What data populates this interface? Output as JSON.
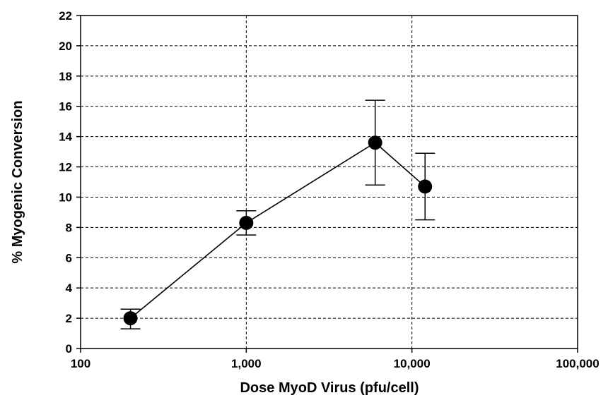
{
  "chart_data": {
    "type": "scatter",
    "title": "",
    "xlabel": "Dose MyoD Virus (pfu/cell)",
    "ylabel": "% Myogenic Conversion",
    "x_scale": "log",
    "xlim": [
      100,
      100000
    ],
    "ylim": [
      0,
      22
    ],
    "x_ticks": [
      100,
      1000,
      10000,
      100000
    ],
    "x_tick_labels": [
      "100",
      "1,000",
      "10,000",
      "100,000"
    ],
    "y_ticks": [
      0,
      2,
      4,
      6,
      8,
      10,
      12,
      14,
      16,
      18,
      20,
      22
    ],
    "y_tick_labels": [
      "0",
      "2",
      "4",
      "6",
      "8",
      "10",
      "12",
      "14",
      "16",
      "18",
      "20",
      "22"
    ],
    "grid": true,
    "legend": "none",
    "series": [
      {
        "connected": true,
        "x": [
          200,
          1000,
          6000,
          12000
        ],
        "y": [
          2.0,
          8.3,
          13.6,
          10.7
        ],
        "error_low": [
          1.3,
          7.5,
          10.8,
          8.5
        ],
        "error_high": [
          2.6,
          9.1,
          16.4,
          12.9
        ]
      }
    ],
    "colors": {
      "marker": "#000000",
      "line": "#000000",
      "grid": "#000000"
    }
  }
}
